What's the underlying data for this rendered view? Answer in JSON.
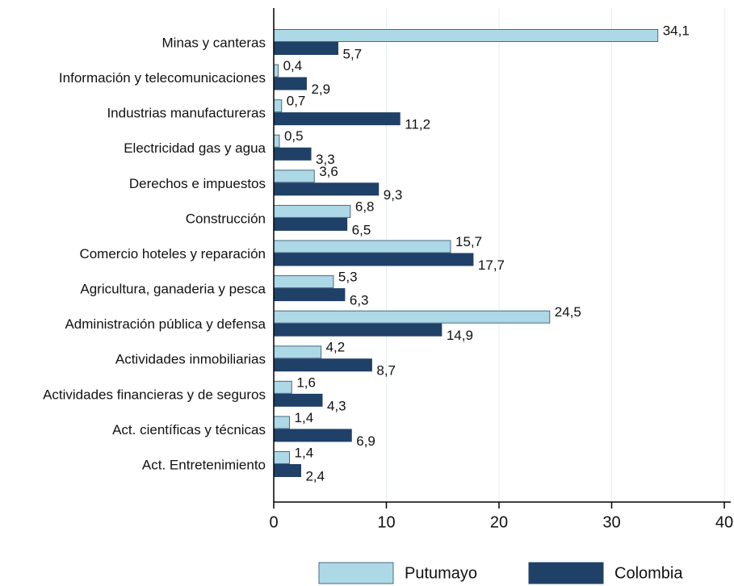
{
  "chart_data": {
    "type": "hbar",
    "categories": [
      "Minas y canteras",
      "Información y telecomunicaciones",
      "Industrias manufactureras",
      "Electricidad gas y agua",
      "Derechos e impuestos",
      "Construcción",
      "Comercio hoteles y reparación",
      "Agricultura, ganaderia y pesca",
      "Administración pública y defensa",
      "Actividades inmobiliarias",
      "Actividades financieras y de seguros",
      "Act. científicas y técnicas",
      "Act. Entretenimiento"
    ],
    "series": [
      {
        "name": "Putumayo",
        "color": "#add8e6",
        "values": [
          34.1,
          0.4,
          0.7,
          0.5,
          3.6,
          6.8,
          15.7,
          5.3,
          24.5,
          4.2,
          1.6,
          1.4,
          1.4
        ],
        "value_labels": [
          "34,1",
          "0,4",
          "0,7",
          "0,5",
          "3,6",
          "6,8",
          "15,7",
          "5,3",
          "24,5",
          "4,2",
          "1,6",
          "1,4",
          "1,4"
        ]
      },
      {
        "name": "Colombia",
        "color": "#1f4168",
        "values": [
          5.7,
          2.9,
          11.2,
          3.3,
          9.3,
          6.5,
          17.7,
          6.3,
          14.9,
          8.7,
          4.3,
          6.9,
          2.4
        ],
        "value_labels": [
          "5,7",
          "2,9",
          "11,2",
          "3,3",
          "9,3",
          "6,5",
          "17,7",
          "6,3",
          "14,9",
          "8,7",
          "4,3",
          "6,9",
          "2,4"
        ]
      }
    ],
    "xlim": [
      0,
      40
    ],
    "xticks": [
      0,
      10,
      20,
      30,
      40
    ],
    "grid": true
  }
}
